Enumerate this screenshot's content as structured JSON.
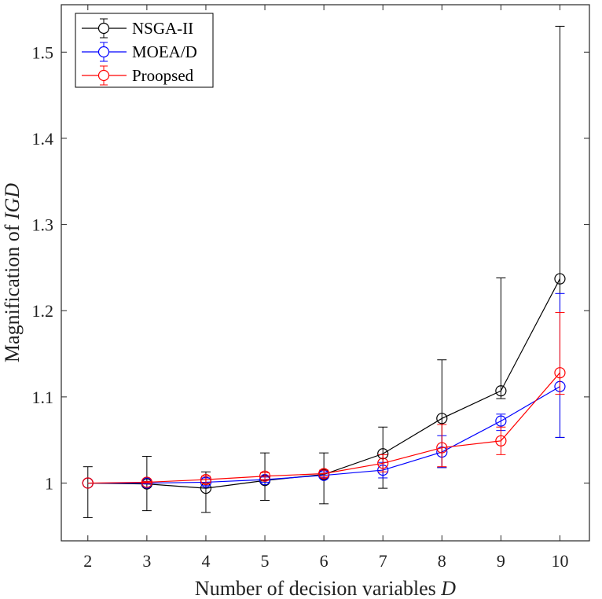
{
  "chart_data": {
    "type": "line",
    "xlabel_prefix": "Number of decision variables ",
    "xlabel_var": "D",
    "ylabel_prefix": "Magnification of ",
    "ylabel_var": "IGD",
    "x": [
      2,
      3,
      4,
      5,
      6,
      7,
      8,
      9,
      10
    ],
    "xlim": [
      1.55,
      10.5
    ],
    "ylim": [
      0.933,
      1.555
    ],
    "xticks": [
      2,
      3,
      4,
      5,
      6,
      7,
      8,
      9,
      10
    ],
    "xtick_labels": [
      "2",
      "3",
      "4",
      "5",
      "6",
      "7",
      "8",
      "9",
      "10"
    ],
    "yticks": [
      1.0,
      1.1,
      1.2,
      1.3,
      1.4,
      1.5
    ],
    "ytick_labels": [
      "1",
      "1.1",
      "1.2",
      "1.3",
      "1.4",
      "1.5"
    ],
    "grid": false,
    "legend_position": "top-left",
    "series": [
      {
        "name": "NSGA-II",
        "color": "#000000",
        "values": [
          1.0,
          0.999,
          0.994,
          1.003,
          1.01,
          1.034,
          1.075,
          1.107,
          1.237
        ],
        "err_low": [
          0.96,
          0.968,
          0.966,
          0.98,
          0.976,
          0.994,
          1.018,
          1.098,
          1.053
        ],
        "err_high": [
          1.019,
          1.031,
          1.013,
          1.035,
          1.035,
          1.065,
          1.143,
          1.238,
          1.53
        ]
      },
      {
        "name": "MOEA/D",
        "color": "#0000ff",
        "values": [
          1.0,
          1.0,
          1.001,
          1.004,
          1.009,
          1.015,
          1.036,
          1.072,
          1.112
        ],
        "err_low": [
          1.0,
          0.999,
          0.997,
          1.001,
          1.006,
          1.006,
          1.018,
          1.061,
          1.053
        ],
        "err_high": [
          1.0,
          1.002,
          1.006,
          1.007,
          1.013,
          1.024,
          1.055,
          1.08,
          1.22
        ]
      },
      {
        "name": "Proopsed",
        "color": "#ff0000",
        "values": [
          1.0,
          1.001,
          1.004,
          1.008,
          1.011,
          1.023,
          1.041,
          1.049,
          1.128
        ],
        "err_low": [
          1.0,
          1.0,
          1.0,
          1.004,
          1.007,
          1.013,
          1.019,
          1.033,
          1.103
        ],
        "err_high": [
          1.0,
          1.002,
          1.008,
          1.012,
          1.015,
          1.033,
          1.068,
          1.065,
          1.198
        ]
      }
    ]
  }
}
